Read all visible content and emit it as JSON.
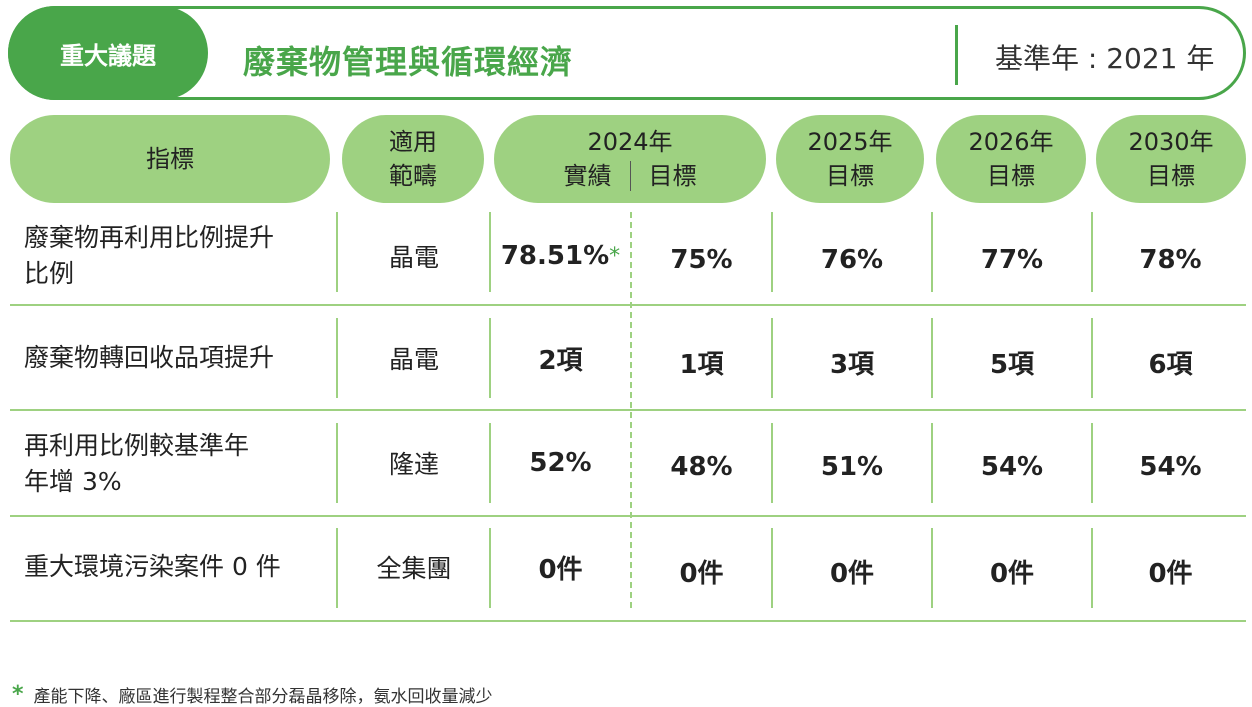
{
  "header": {
    "badge": "重大議題",
    "topic": "廢棄物管理與循環經濟",
    "base_year": "基準年 : 2021 年"
  },
  "columns": {
    "indicator": "指標",
    "scope_line1": "適用",
    "scope_line2": "範疇",
    "y2024_year": "2024年",
    "y2024_actual": "實績",
    "y2024_target": "目標",
    "y2025_year": "2025年",
    "y2025_target": "目標",
    "y2026_year": "2026年",
    "y2026_target": "目標",
    "y2030_year": "2030年",
    "y2030_target": "目標"
  },
  "rows": [
    {
      "indicator_line1": "廢棄物再利用比例提升",
      "indicator_line2": "比例",
      "scope": "晶電",
      "actual_2024": "78.51%",
      "actual_note": "*",
      "target_2024": "75%",
      "target_2025": "76%",
      "target_2026": "77%",
      "target_2030": "78%"
    },
    {
      "indicator_line1": "廢棄物轉回收品項提升",
      "indicator_line2": "",
      "scope": "晶電",
      "actual_2024": "2項",
      "actual_note": "",
      "target_2024": "1項",
      "target_2025": "3項",
      "target_2026": "5項",
      "target_2030": "6項"
    },
    {
      "indicator_line1": "再利用比例較基準年",
      "indicator_line2": "年增 3%",
      "scope": "隆達",
      "actual_2024": "52%",
      "actual_note": "",
      "target_2024": "48%",
      "target_2025": "51%",
      "target_2026": "54%",
      "target_2030": "54%"
    },
    {
      "indicator_line1": "重大環境污染案件 0 件",
      "indicator_line2": "",
      "scope": "全集團",
      "actual_2024": "0件",
      "actual_note": "",
      "target_2024": "0件",
      "target_2025": "0件",
      "target_2026": "0件",
      "target_2030": "0件"
    }
  ],
  "footnote": {
    "marker": "*",
    "text": "產能下降、廠區進行製程整合部分磊晶移除，氨水回收量減少"
  },
  "colors": {
    "accent": "#49a64a",
    "pill": "#9ed181"
  }
}
